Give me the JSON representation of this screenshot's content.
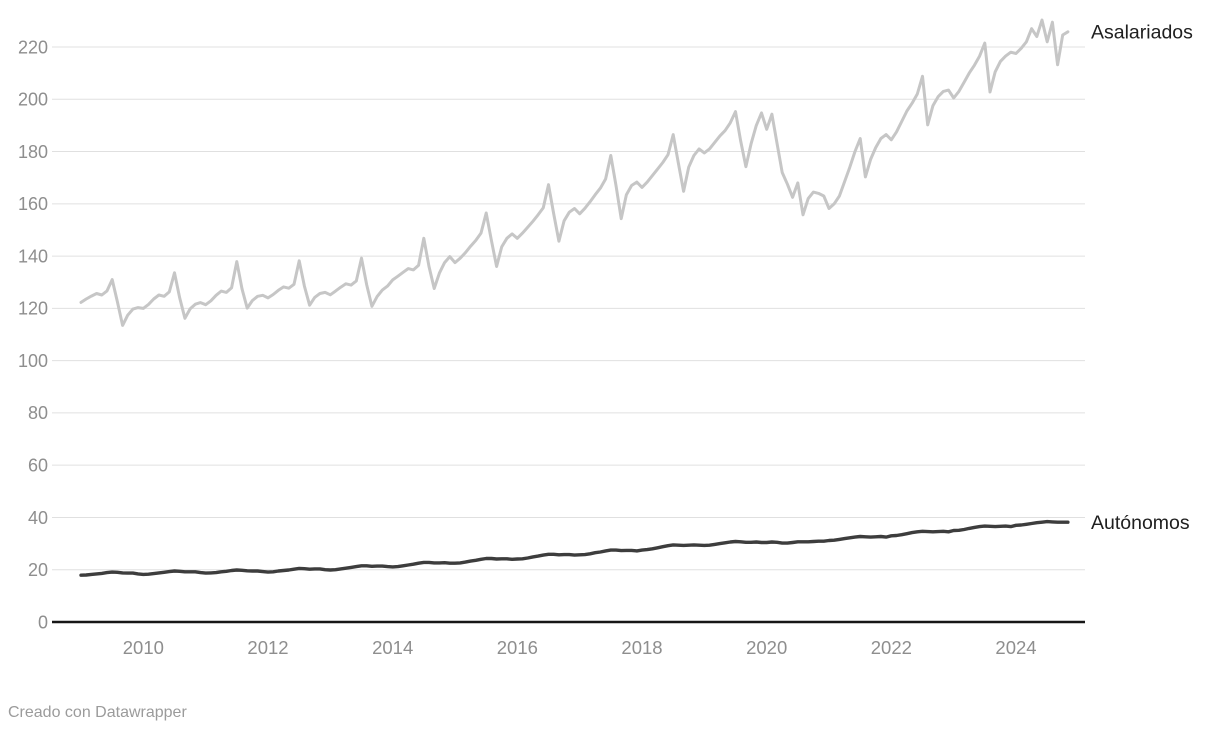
{
  "footer": {
    "credit": "Creado con Datawrapper"
  },
  "colors": {
    "background": "#ffffff",
    "asalariados_line": "#c6c6c6",
    "autonomos_line": "#3d3d3d",
    "gridline": "#e0e0e0",
    "axis_baseline": "#161616",
    "tick_label": "#8e8e8e",
    "series_label": "#202020"
  },
  "chart_data": {
    "type": "line",
    "title": "",
    "x_frequency": "monthly",
    "x_start": "2009-01",
    "x_end": "2024-11",
    "grid": "horizontal-only",
    "legend_position": "right-end-labels",
    "ylim": [
      0,
      232
    ],
    "y_ticks": [
      0,
      20,
      40,
      60,
      80,
      100,
      120,
      140,
      160,
      180,
      200,
      220
    ],
    "x_tick_years": [
      2010,
      2012,
      2014,
      2016,
      2018,
      2020,
      2022,
      2024
    ],
    "series": [
      {
        "name": "Asalariados",
        "color": "#c6c6c6",
        "values": [
          122.3,
          123.6,
          124.7,
          125.7,
          125.1,
          126.7,
          131.0,
          122.5,
          113.5,
          117.4,
          119.7,
          120.3,
          120.0,
          121.5,
          123.6,
          125.1,
          124.6,
          126.3,
          133.6,
          124.0,
          116.2,
          119.8,
          121.6,
          122.2,
          121.4,
          122.9,
          125.0,
          126.6,
          126.1,
          127.9,
          137.9,
          127.5,
          120.1,
          123.0,
          124.6,
          125.0,
          124.0,
          125.3,
          126.9,
          128.2,
          127.7,
          129.2,
          138.2,
          128.5,
          121.2,
          124.2,
          125.7,
          126.1,
          125.2,
          126.6,
          128.1,
          129.4,
          128.9,
          130.5,
          139.2,
          129.0,
          120.8,
          124.5,
          127.0,
          128.5,
          130.9,
          132.3,
          133.8,
          135.2,
          134.7,
          136.5,
          146.8,
          136.0,
          127.6,
          133.5,
          137.5,
          139.8,
          137.5,
          139.2,
          141.3,
          143.8,
          146.0,
          148.8,
          156.5,
          146.0,
          136.0,
          143.5,
          146.8,
          148.5,
          146.8,
          148.8,
          151.0,
          153.3,
          155.8,
          158.5,
          167.3,
          156.2,
          145.7,
          153.5,
          156.8,
          158.2,
          156.2,
          158.3,
          160.8,
          163.5,
          166.0,
          169.5,
          178.5,
          167.0,
          154.3,
          163.5,
          167.0,
          168.3,
          166.3,
          168.3,
          170.8,
          173.3,
          175.8,
          178.8,
          186.5,
          175.5,
          164.8,
          174.0,
          178.5,
          181.0,
          179.5,
          181.0,
          183.5,
          186.0,
          188.0,
          191.0,
          195.3,
          184.0,
          174.2,
          183.0,
          190.0,
          194.8,
          188.5,
          194.3,
          183.0,
          172.0,
          167.5,
          162.5,
          168.0,
          155.8,
          162.0,
          164.5,
          164.0,
          163.0,
          158.2,
          160.0,
          163.0,
          168.5,
          174.0,
          180.0,
          185.0,
          170.3,
          177.0,
          181.5,
          185.0,
          186.5,
          184.5,
          187.5,
          191.5,
          195.5,
          198.5,
          202.0,
          208.8,
          190.2,
          197.5,
          201.0,
          203.0,
          203.5,
          200.5,
          203.0,
          206.5,
          210.0,
          213.0,
          216.5,
          221.5,
          202.8,
          210.5,
          214.5,
          216.5,
          218.0,
          217.5,
          219.5,
          222.0,
          227.0,
          224.0,
          230.3,
          222.0,
          229.5,
          213.2,
          224.6,
          225.8
        ]
      },
      {
        "name": "Autónomos",
        "color": "#3d3d3d",
        "values": [
          17.9,
          18.0,
          18.2,
          18.4,
          18.6,
          18.9,
          19.1,
          19.0,
          18.8,
          18.7,
          18.7,
          18.4,
          18.2,
          18.3,
          18.5,
          18.8,
          19.0,
          19.3,
          19.5,
          19.4,
          19.2,
          19.2,
          19.2,
          18.9,
          18.7,
          18.8,
          18.9,
          19.2,
          19.4,
          19.7,
          19.9,
          19.8,
          19.6,
          19.5,
          19.5,
          19.3,
          19.1,
          19.2,
          19.5,
          19.7,
          19.9,
          20.2,
          20.5,
          20.4,
          20.2,
          20.3,
          20.3,
          20.0,
          19.9,
          20.0,
          20.3,
          20.6,
          20.9,
          21.2,
          21.5,
          21.5,
          21.3,
          21.4,
          21.4,
          21.2,
          21.1,
          21.2,
          21.5,
          21.8,
          22.1,
          22.5,
          22.8,
          22.8,
          22.6,
          22.6,
          22.7,
          22.5,
          22.5,
          22.6,
          22.9,
          23.3,
          23.6,
          24.0,
          24.3,
          24.3,
          24.1,
          24.2,
          24.2,
          24.0,
          24.1,
          24.2,
          24.5,
          24.9,
          25.2,
          25.6,
          25.9,
          25.9,
          25.7,
          25.8,
          25.8,
          25.6,
          25.7,
          25.8,
          26.1,
          26.5,
          26.8,
          27.2,
          27.5,
          27.5,
          27.3,
          27.4,
          27.4,
          27.2,
          27.5,
          27.7,
          28.0,
          28.4,
          28.8,
          29.2,
          29.5,
          29.4,
          29.3,
          29.4,
          29.5,
          29.4,
          29.3,
          29.4,
          29.7,
          30.0,
          30.3,
          30.6,
          30.8,
          30.7,
          30.5,
          30.5,
          30.6,
          30.4,
          30.4,
          30.6,
          30.5,
          30.2,
          30.2,
          30.4,
          30.7,
          30.7,
          30.7,
          30.8,
          30.9,
          30.9,
          31.2,
          31.3,
          31.6,
          31.9,
          32.2,
          32.5,
          32.7,
          32.6,
          32.5,
          32.6,
          32.7,
          32.5,
          33.0,
          33.1,
          33.4,
          33.8,
          34.2,
          34.5,
          34.7,
          34.6,
          34.5,
          34.6,
          34.7,
          34.5,
          35.0,
          35.1,
          35.4,
          35.8,
          36.2,
          36.5,
          36.7,
          36.6,
          36.5,
          36.6,
          36.7,
          36.5,
          37.0,
          37.1,
          37.4,
          37.7,
          38.0,
          38.2,
          38.4,
          38.3,
          38.2,
          38.2,
          38.2
        ]
      }
    ]
  }
}
